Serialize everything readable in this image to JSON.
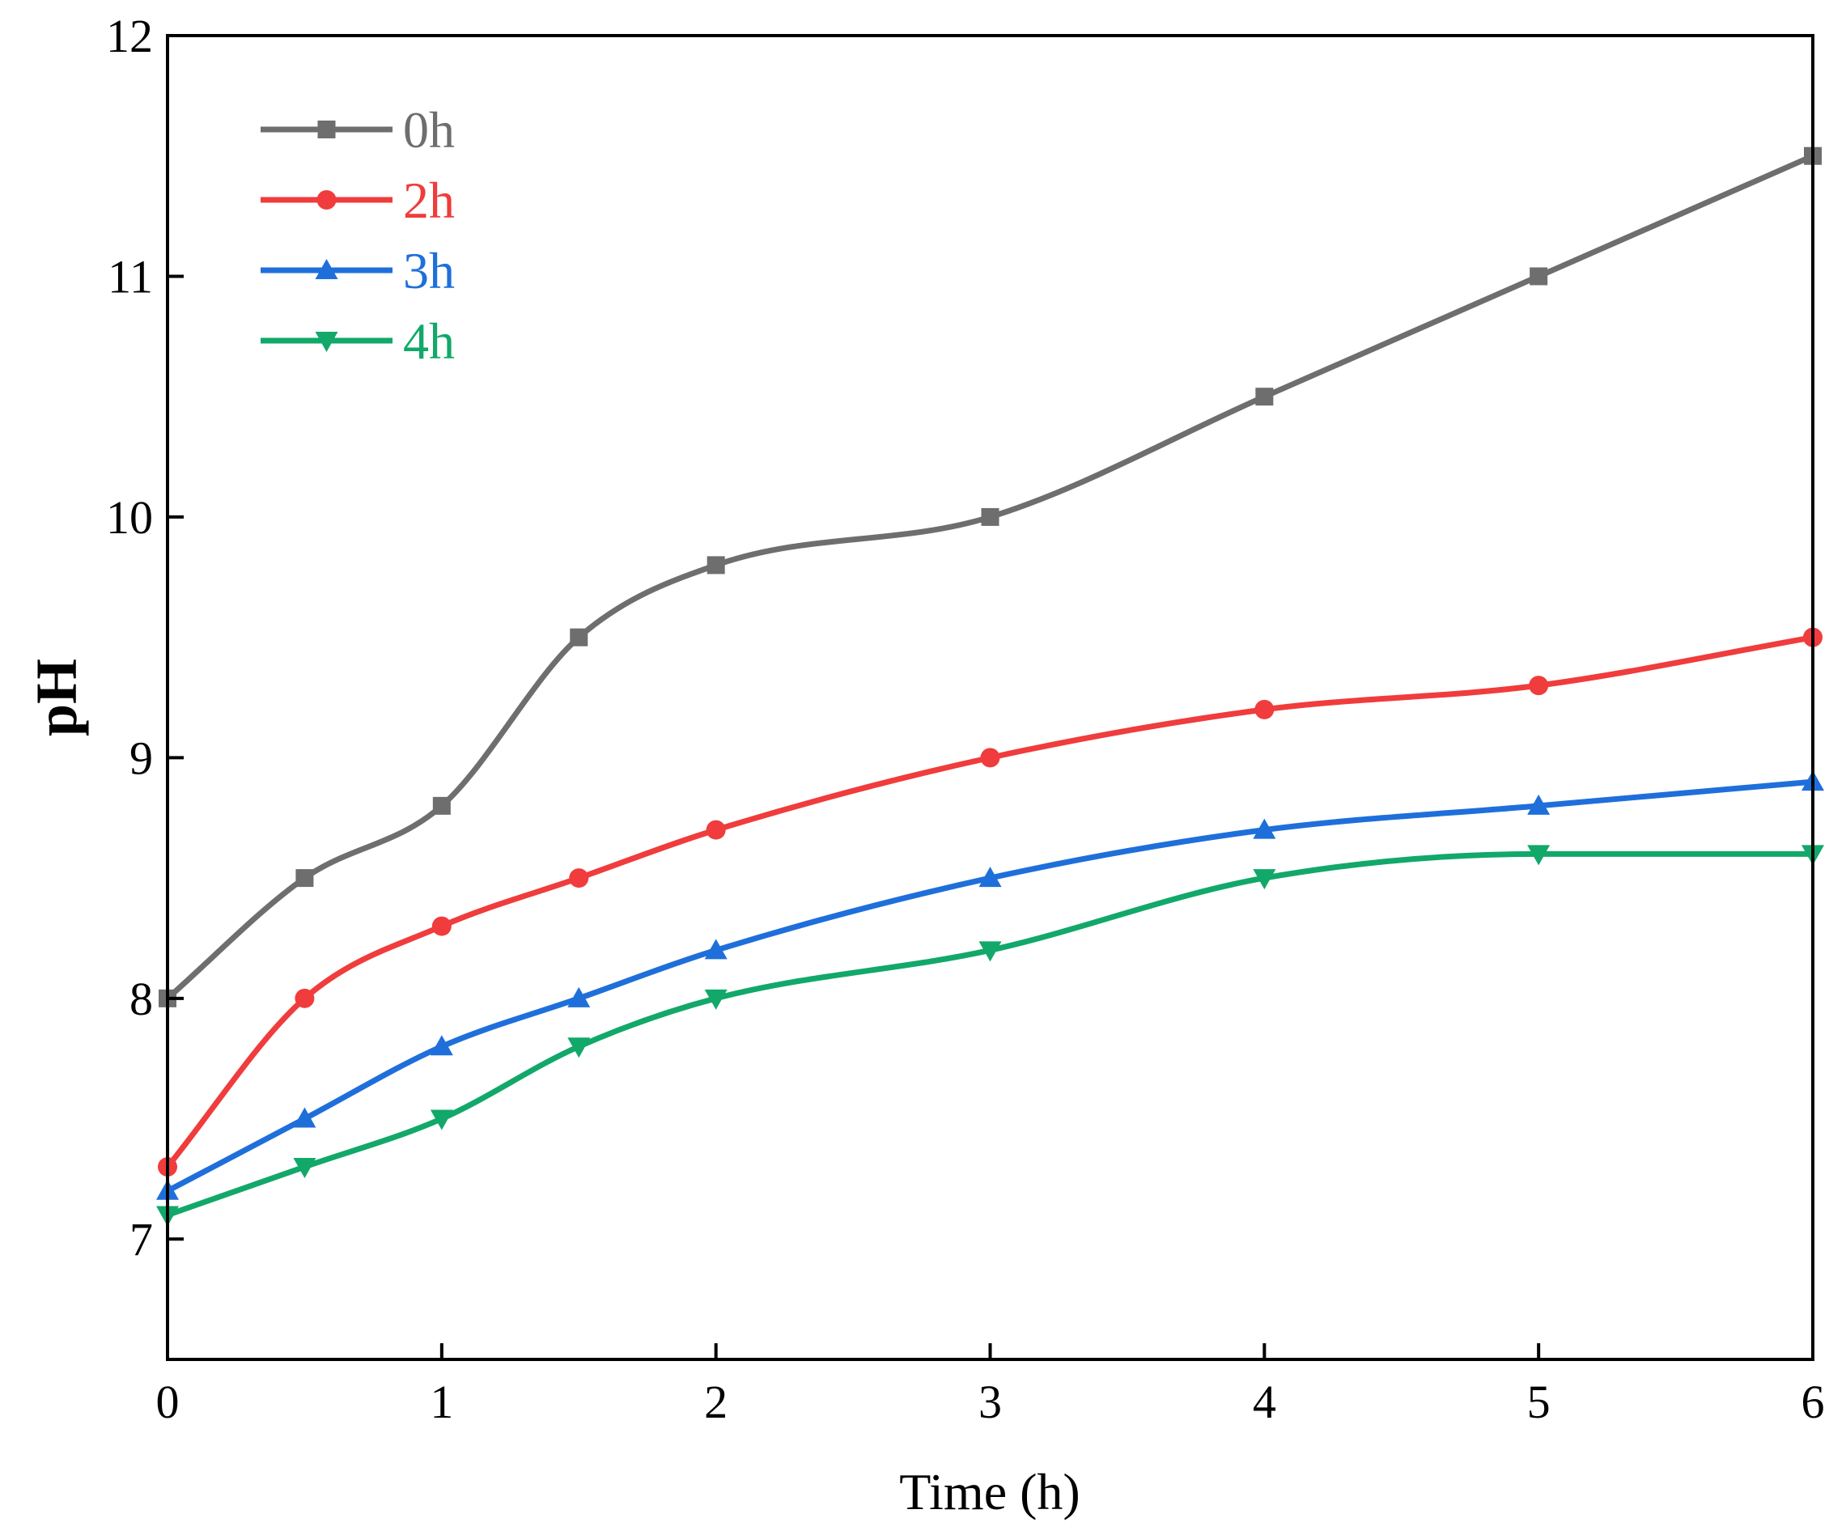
{
  "chart_data": {
    "type": "line",
    "title": "",
    "xlabel": "Time (h)",
    "ylabel": "pH",
    "xlim": [
      0,
      6
    ],
    "ylim": [
      6.5,
      12
    ],
    "xticks": [
      0,
      1,
      2,
      3,
      4,
      5,
      6
    ],
    "xtick_labels": [
      "0",
      "1",
      "2",
      "3",
      "4",
      "5",
      "6"
    ],
    "yticks": [
      7,
      8,
      9,
      10,
      11,
      12
    ],
    "ytick_labels": [
      "7",
      "8",
      "9",
      "10",
      "11",
      "12"
    ],
    "grid": false,
    "legend_position": "top-left",
    "x": [
      0,
      0.5,
      1,
      1.5,
      2,
      3,
      4,
      5,
      6
    ],
    "series": [
      {
        "name": "0h",
        "color": "#6e6e6e",
        "marker": "square",
        "values": [
          8.0,
          8.5,
          8.8,
          9.5,
          9.8,
          10.0,
          10.5,
          11.0,
          11.5
        ]
      },
      {
        "name": "2h",
        "color": "#f03c3c",
        "marker": "circle",
        "values": [
          7.3,
          8.0,
          8.3,
          8.5,
          8.7,
          9.0,
          9.2,
          9.3,
          9.5
        ]
      },
      {
        "name": "3h",
        "color": "#1f6fdb",
        "marker": "triangle-up",
        "values": [
          7.2,
          7.5,
          7.8,
          8.0,
          8.2,
          8.5,
          8.7,
          8.8,
          8.9
        ]
      },
      {
        "name": "4h",
        "color": "#12a86a",
        "marker": "triangle-down",
        "values": [
          7.1,
          7.3,
          7.5,
          7.8,
          8.0,
          8.2,
          8.5,
          8.6,
          8.6
        ]
      }
    ]
  }
}
